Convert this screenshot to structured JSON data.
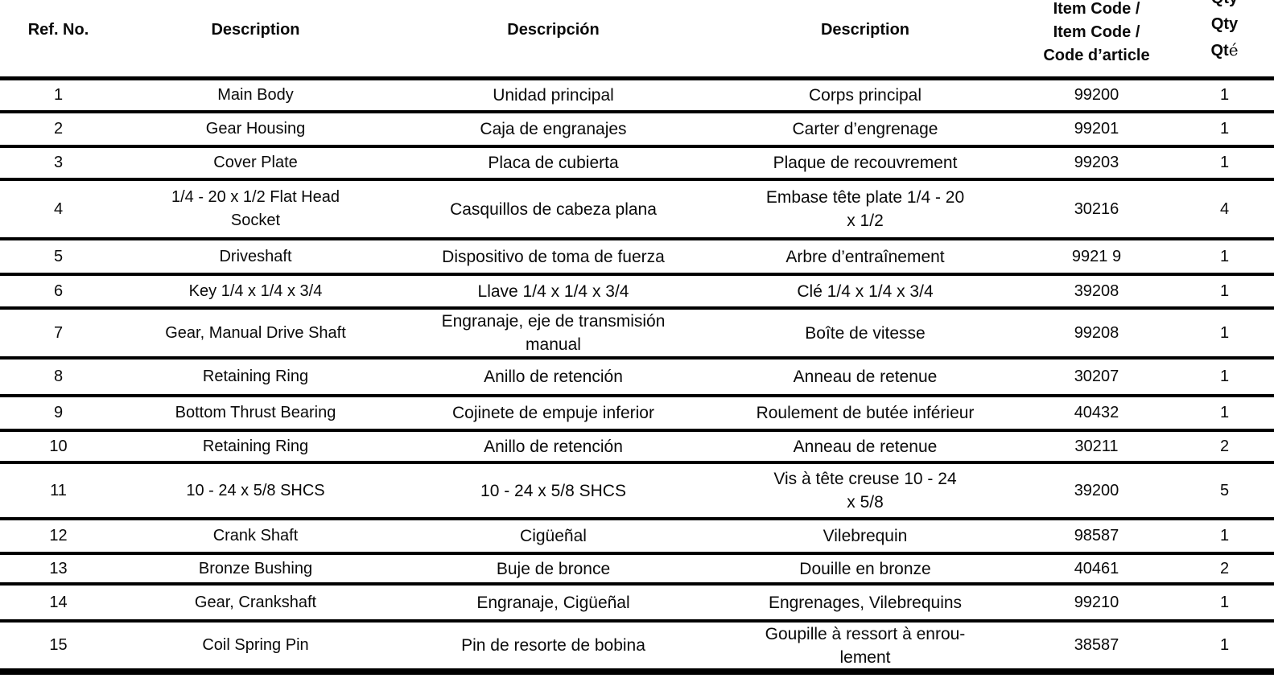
{
  "table": {
    "headers": {
      "ref": "Ref. No.",
      "desc_en": "Description",
      "desc_es": "Descripción",
      "desc_fr": "Description",
      "item_code": "Item Code /\nItem Code /\nCode d’article",
      "qty_en_lines": "Qty\nQty",
      "qty_fr_prefix": "Qt",
      "qty_fr_accent": "é"
    },
    "rows": [
      {
        "ref": "1",
        "en": "Main Body",
        "es": "Unidad principal",
        "fr": "Corps principal",
        "code": "99200",
        "qty": "1"
      },
      {
        "ref": "2",
        "en": "Gear Housing",
        "es": "Caja de engranajes",
        "fr": "Carter d’engrenage",
        "code": "99201",
        "qty": "1"
      },
      {
        "ref": "3",
        "en": "Cover Plate",
        "es": "Placa de cubierta",
        "fr": "Plaque de recouvrement",
        "code": "99203",
        "qty": "1"
      },
      {
        "ref": "4",
        "en": "1/4 - 20 x 1/2 Flat Head\nSocket",
        "es": "Casquillos de cabeza plana",
        "fr": "Embase tête plate 1/4 - 20\nx 1/2",
        "code": "30216",
        "qty": "4"
      },
      {
        "ref": "5",
        "en": "Driveshaft",
        "es": "Dispositivo de toma de fuerza",
        "fr": "Arbre d’entraînement",
        "code": "9921 9",
        "qty": "1"
      },
      {
        "ref": "6",
        "en": "Key 1/4 x 1/4 x 3/4",
        "es": "Llave 1/4 x 1/4 x 3/4",
        "fr": "Clé 1/4 x 1/4 x 3/4",
        "code": "39208",
        "qty": "1"
      },
      {
        "ref": "7",
        "en": "Gear, Manual Drive Shaft",
        "es": "Engranaje, eje de transmisión\nmanual",
        "fr": "Boîte de vitesse",
        "code": "99208",
        "qty": "1"
      },
      {
        "ref": "8",
        "en": "Retaining Ring",
        "es": "Anillo de retención",
        "fr": "Anneau de retenue",
        "code": "30207",
        "qty": "1"
      },
      {
        "ref": "9",
        "en": "Bottom Thrust Bearing",
        "es": "Cojinete de empuje inferior",
        "fr": "Roulement de butée inférieur",
        "code": "40432",
        "qty": "1"
      },
      {
        "ref": "10",
        "en": "Retaining Ring",
        "es": "Anillo de retención",
        "fr": "Anneau de retenue",
        "code": "30211",
        "qty": "2"
      },
      {
        "ref": "11",
        "en": "10 - 24 x 5/8 SHCS",
        "es": "10 - 24 x 5/8 SHCS",
        "fr": "Vis à tête creuse 10 - 24\nx 5/8",
        "code": "39200",
        "qty": "5"
      },
      {
        "ref": "12",
        "en": "Crank Shaft",
        "es": "Cigüeñal",
        "fr": "Vilebrequin",
        "code": "98587",
        "qty": "1"
      },
      {
        "ref": "13",
        "en": "Bronze Bushing",
        "es": "Buje de bronce",
        "fr": "Douille en bronze",
        "code": "40461",
        "qty": "2"
      },
      {
        "ref": "14",
        "en": "Gear, Crankshaft",
        "es": "Engranaje, Cigüeñal",
        "fr": "Engrenages, Vilebrequins",
        "code": "99210",
        "qty": "1"
      },
      {
        "ref": "15",
        "en": "Coil Spring Pin",
        "es": "Pin de resorte de bobina",
        "fr": "Goupille à ressort à enrou-\nlement",
        "code": "38587",
        "qty": "1"
      }
    ]
  }
}
